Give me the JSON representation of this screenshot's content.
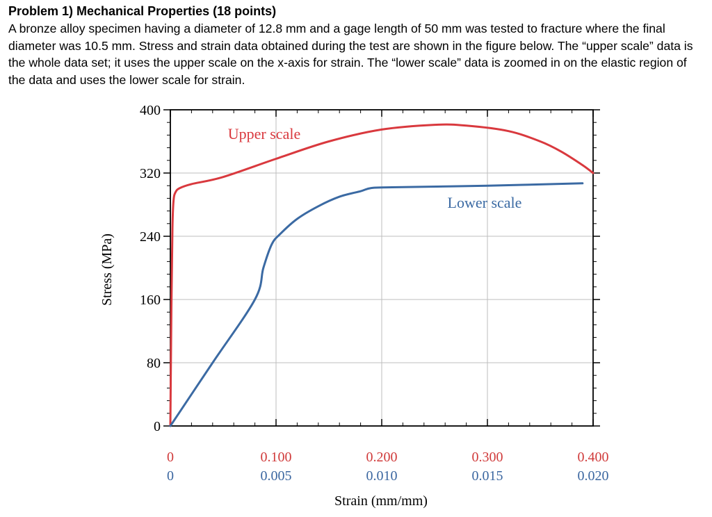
{
  "problem": {
    "title": "Problem 1) Mechanical Properties (18 points)",
    "body": "A bronze alloy specimen having a diameter of 12.8 mm and a gage length of 50 mm was tested to fracture where the final diameter was 10.5 mm. Stress and strain data obtained during the test are shown in the figure below. The “upper scale” data is the whole data set; it uses the upper scale on the x-axis for strain.  The “lower scale” data is zoomed in on the elastic region of the data and uses the lower scale for strain."
  },
  "chart_data": {
    "type": "line",
    "xlabel": "Strain (mm/mm)",
    "ylabel": "Stress (MPa)",
    "ylim": [
      0,
      400
    ],
    "y_ticks": [
      0,
      80,
      160,
      240,
      320,
      400
    ],
    "x_upper": {
      "range": [
        0,
        0.4
      ],
      "tick_labels": [
        "0",
        "0.100",
        "0.200",
        "0.300",
        "0.400"
      ],
      "color": "#d03a3a"
    },
    "x_lower": {
      "range": [
        0,
        0.02
      ],
      "tick_labels": [
        "0",
        "0.005",
        "0.010",
        "0.015",
        "0.020"
      ],
      "color": "#3a66a0"
    },
    "grid": true,
    "series": [
      {
        "name": "Upper scale",
        "axis": "upper",
        "color": "#d9393e",
        "points": [
          [
            0,
            0
          ],
          [
            0.001,
            150
          ],
          [
            0.002,
            250
          ],
          [
            0.003,
            285
          ],
          [
            0.005,
            296
          ],
          [
            0.009,
            301
          ],
          [
            0.02,
            306
          ],
          [
            0.05,
            315
          ],
          [
            0.1,
            338
          ],
          [
            0.15,
            360
          ],
          [
            0.2,
            375
          ],
          [
            0.25,
            381
          ],
          [
            0.28,
            380
          ],
          [
            0.32,
            373
          ],
          [
            0.35,
            360
          ],
          [
            0.37,
            347
          ],
          [
            0.39,
            330
          ],
          [
            0.4,
            320
          ]
        ]
      },
      {
        "name": "Lower scale",
        "axis": "lower",
        "color": "#3b6aa3",
        "points": [
          [
            0,
            0
          ],
          [
            0.002,
            80
          ],
          [
            0.004,
            160
          ],
          [
            0.0044,
            200
          ],
          [
            0.0048,
            230
          ],
          [
            0.0052,
            243
          ],
          [
            0.006,
            262
          ],
          [
            0.007,
            278
          ],
          [
            0.008,
            290
          ],
          [
            0.009,
            297
          ],
          [
            0.0095,
            301
          ],
          [
            0.0105,
            302
          ],
          [
            0.015,
            304
          ],
          [
            0.0195,
            307
          ]
        ]
      }
    ]
  }
}
